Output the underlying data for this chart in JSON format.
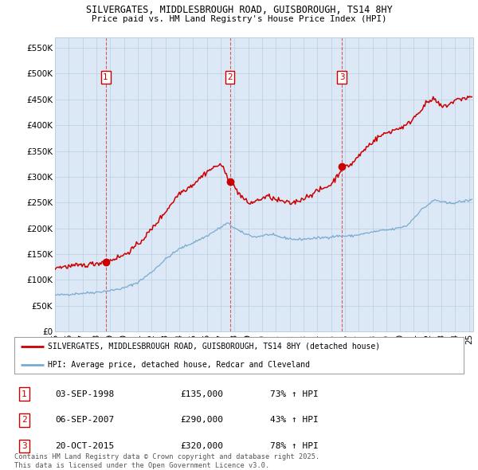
{
  "title1": "SILVERGATES, MIDDLESBROUGH ROAD, GUISBOROUGH, TS14 8HY",
  "title2": "Price paid vs. HM Land Registry's House Price Index (HPI)",
  "ylim": [
    0,
    570000
  ],
  "yticks": [
    0,
    50000,
    100000,
    150000,
    200000,
    250000,
    300000,
    350000,
    400000,
    450000,
    500000,
    550000
  ],
  "xlim_start": 1995.0,
  "xlim_end": 2025.3,
  "sale_dates": [
    1998.67,
    2007.67,
    2015.8
  ],
  "sale_prices": [
    135000,
    290000,
    320000
  ],
  "sale_labels": [
    "1",
    "2",
    "3"
  ],
  "sale_date_strs": [
    "03-SEP-1998",
    "06-SEP-2007",
    "20-OCT-2015"
  ],
  "sale_price_strs": [
    "£135,000",
    "£290,000",
    "£320,000"
  ],
  "sale_hpi_strs": [
    "73% ↑ HPI",
    "43% ↑ HPI",
    "78% ↑ HPI"
  ],
  "legend_line1": "SILVERGATES, MIDDLESBROUGH ROAD, GUISBOROUGH, TS14 8HY (detached house)",
  "legend_line2": "HPI: Average price, detached house, Redcar and Cleveland",
  "footer": "Contains HM Land Registry data © Crown copyright and database right 2025.\nThis data is licensed under the Open Government Licence v3.0.",
  "red_color": "#cc0000",
  "blue_color": "#7aabcf",
  "chart_bg": "#dce8f5",
  "bg_color": "#ffffff",
  "grid_color": "#b8cfe0"
}
